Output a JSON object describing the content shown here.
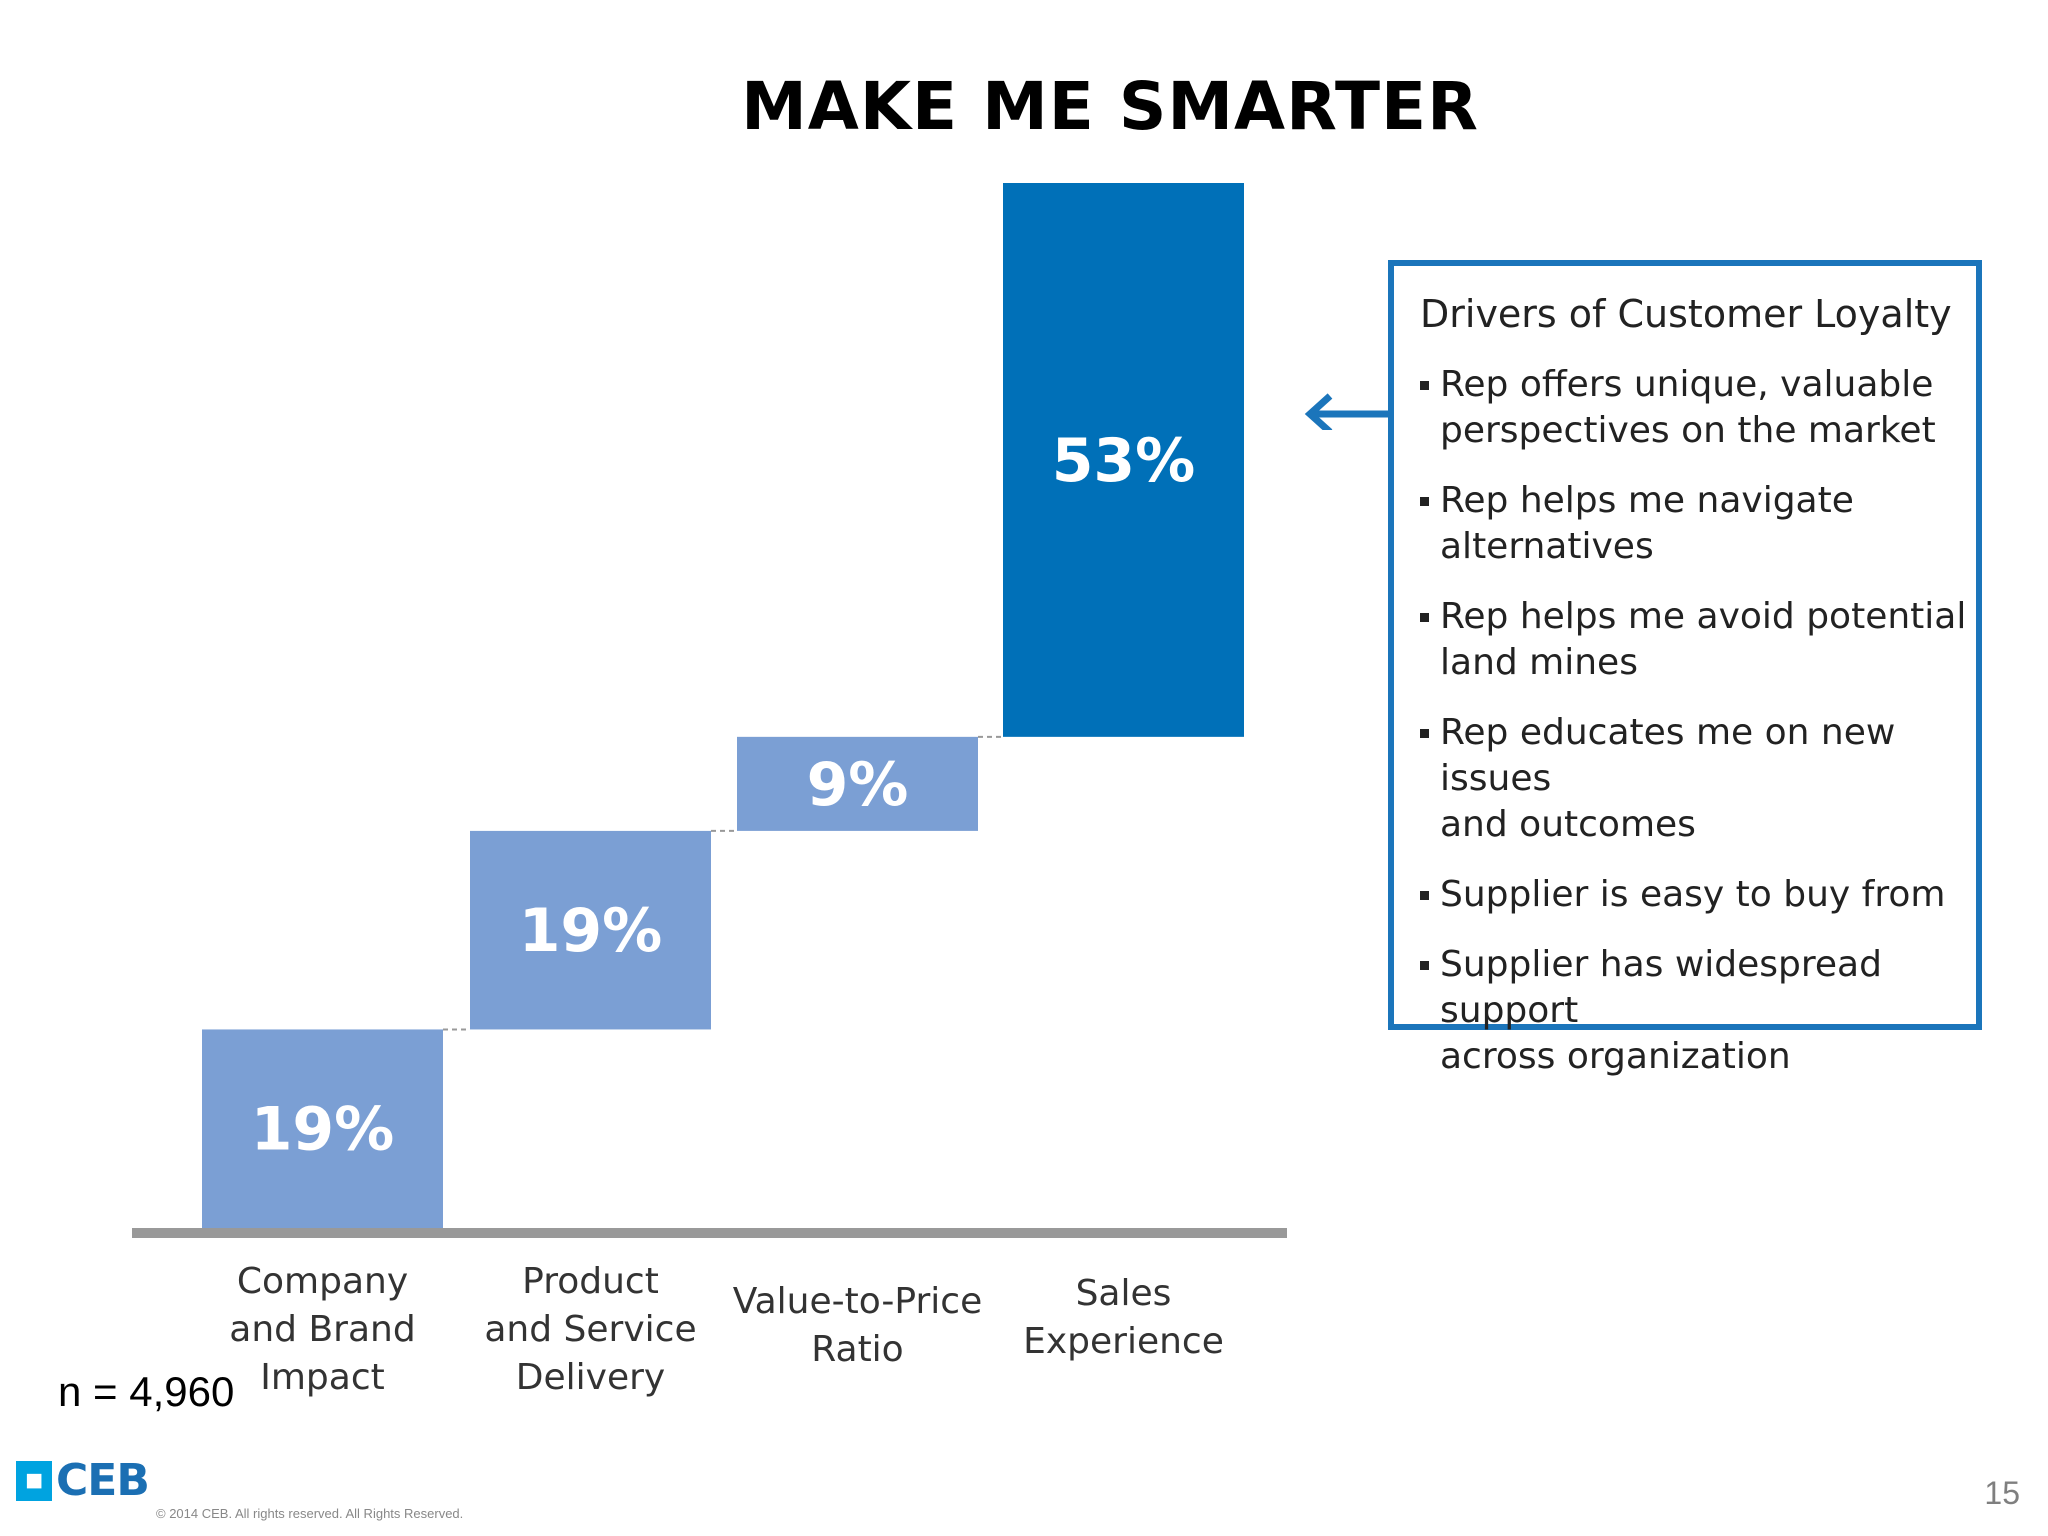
{
  "page": {
    "title": "MAKE ME SMARTER",
    "sample_size": "n = 4,960",
    "logo_text": "CEB",
    "copyright": "© 2014 CEB. All rights reserved. All Rights Reserved.",
    "page_number": "15"
  },
  "legend": {
    "title": "Drivers of Customer Loyalty",
    "items": [
      "Rep offers unique, valuable\nperspectives on the market",
      "Rep helps me navigate\nalternatives",
      "Rep helps me avoid potential\nland mines",
      "Rep educates me on new issues\nand outcomes",
      "Supplier is easy to buy from",
      "Supplier has widespread support\nacross organization"
    ]
  },
  "chart_data": {
    "type": "bar",
    "subtype": "waterfall",
    "categories": [
      "Company\nand Brand\nImpact",
      "Product\nand Service\nDelivery",
      "Value-to-Price\nRatio",
      "Sales\nExperience"
    ],
    "values": [
      19,
      19,
      9,
      53
    ],
    "labels": [
      "19%",
      "19%",
      "9%",
      "53%"
    ],
    "ylim": [
      0,
      100
    ],
    "colors": [
      "#7b9fd4",
      "#7b9fd4",
      "#7b9fd4",
      "#0070b8"
    ]
  }
}
